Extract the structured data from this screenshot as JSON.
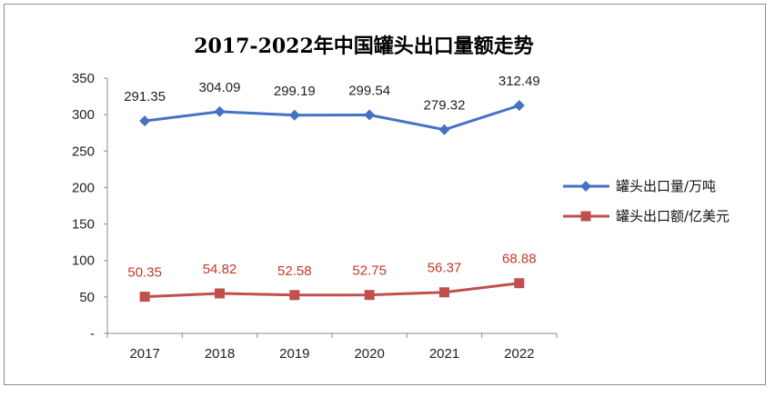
{
  "chart_data": {
    "type": "line",
    "title": "2017-2022年中国罐头出口量额走势",
    "categories": [
      "2017",
      "2018",
      "2019",
      "2020",
      "2021",
      "2022"
    ],
    "ylim": [
      0,
      350
    ],
    "yticks": [
      "-",
      "50",
      "100",
      "150",
      "200",
      "250",
      "300",
      "350"
    ],
    "grid": false,
    "legend_position": "right",
    "series": [
      {
        "name": "罐头出口量/万吨",
        "values": [
          291.35,
          304.09,
          299.19,
          299.54,
          279.32,
          312.49
        ],
        "labels": [
          "291.35",
          "304.09",
          "299.19",
          "299.54",
          "279.32",
          "312.49"
        ],
        "color": "#4472c4",
        "marker": "diamond"
      },
      {
        "name": "罐头出口额/亿美元",
        "values": [
          50.35,
          54.82,
          52.58,
          52.75,
          56.37,
          68.88
        ],
        "labels": [
          "50.35",
          "54.82",
          "52.58",
          "52.75",
          "56.37",
          "68.88"
        ],
        "color": "#c0504d",
        "marker": "square"
      }
    ]
  }
}
